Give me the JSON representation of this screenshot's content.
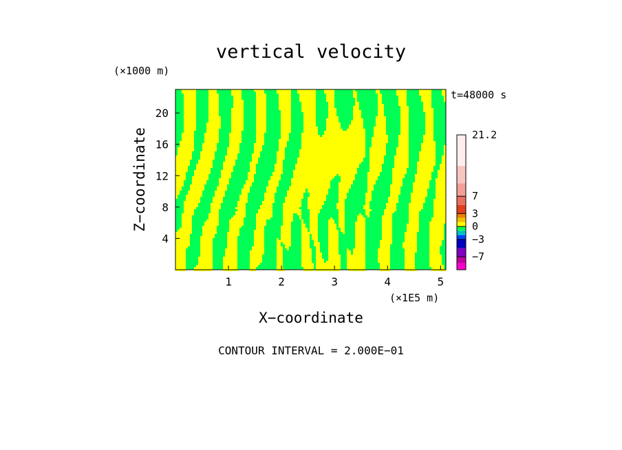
{
  "chart_data": {
    "type": "heatmap",
    "title": "vertical velocity",
    "xlabel": "X−coordinate",
    "ylabel": "Z−coordinate",
    "x_unit": "(×1E5 m)",
    "y_unit": "(×1000 m)",
    "time_label": "t=48000 s",
    "footer": "CONTOUR INTERVAL = 2.000E−01",
    "xlim": [
      0,
      5.1
    ],
    "ylim": [
      0,
      23
    ],
    "x_ticks": [
      1,
      2,
      3,
      4,
      5
    ],
    "y_ticks": [
      4,
      8,
      12,
      16,
      20
    ],
    "dominant_colors": {
      "positive_small": "#ffff00",
      "negative_small": "#00ff55"
    },
    "colorbar": {
      "labels": [
        "21.2",
        "7",
        "3",
        "0",
        "−3",
        "−7"
      ],
      "label_values": [
        21.2,
        7,
        3,
        0,
        -3,
        -7
      ],
      "colors": [
        "#ffeeee",
        "#f8c6c0",
        "#f2a098",
        "#e87060",
        "#e04020",
        "#f08000",
        "#f0c000",
        "#ffff00",
        "#00ff55",
        "#00c0c0",
        "#0040ff",
        "#0000c0",
        "#8000c0",
        "#c000a0",
        "#ff00cc"
      ]
    }
  }
}
